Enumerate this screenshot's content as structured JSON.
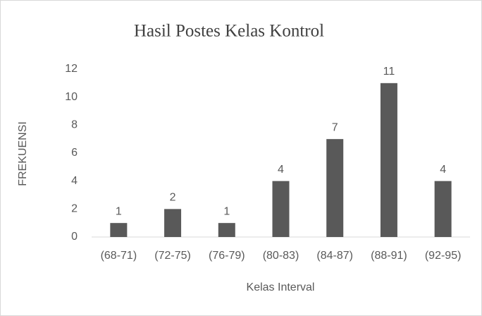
{
  "chart_data": {
    "type": "bar",
    "title": "Hasil Postes Kelas Kontrol",
    "xlabel": "Kelas Interval",
    "ylabel": "FREKUENSI",
    "categories": [
      "(68-71)",
      "(72-75)",
      "(76-79)",
      "(80-83)",
      "(84-87)",
      "(88-91)",
      "(92-95)"
    ],
    "values": [
      1,
      2,
      1,
      4,
      7,
      11,
      4
    ],
    "color": "#595959",
    "ylim": [
      0,
      12
    ],
    "yticks": [
      0,
      2,
      4,
      6,
      8,
      10,
      12
    ],
    "grid": false
  }
}
